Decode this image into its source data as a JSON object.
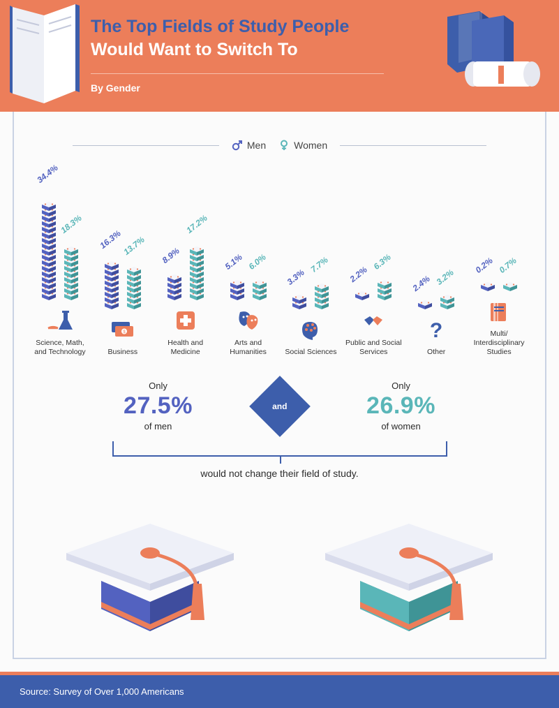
{
  "colors": {
    "header_bg": "#ec7e5a",
    "primary_blue": "#3d5eab",
    "men": "#5362c0",
    "men_dark": "#3f4d9e",
    "women": "#5ab6b8",
    "women_dark": "#3f9496",
    "white": "#ffffff",
    "orange": "#ec7e5a",
    "frame_border": "#c9d2e4",
    "page_bg": "#fbfbfb",
    "rule": "#b8c0d0",
    "icon_blue": "#3d5eab",
    "icon_orange": "#ec7e5a"
  },
  "header": {
    "title_line1": "The Top Fields of Study People",
    "title_line2": "Would Want to Switch To",
    "byline": "By Gender"
  },
  "legend": {
    "men_label": "Men",
    "women_label": "Women"
  },
  "chart": {
    "unit_pct_per_tile": 2.0,
    "pct_label_fontsize": 12,
    "cat_label_fontsize": 10.5,
    "categories": [
      {
        "key": "stem",
        "label": "Science, Math, and Technology",
        "men": 34.4,
        "women": 18.3,
        "icon": "stem"
      },
      {
        "key": "business",
        "label": "Business",
        "men": 16.3,
        "women": 13.7,
        "icon": "business"
      },
      {
        "key": "health",
        "label": "Health and Medicine",
        "men": 8.9,
        "women": 17.2,
        "icon": "health"
      },
      {
        "key": "arts",
        "label": "Arts and Humanities",
        "men": 5.1,
        "women": 6.0,
        "icon": "arts"
      },
      {
        "key": "social",
        "label": "Social Sciences",
        "men": 3.3,
        "women": 7.7,
        "icon": "social"
      },
      {
        "key": "public",
        "label": "Public and Social Services",
        "men": 2.2,
        "women": 6.3,
        "icon": "public"
      },
      {
        "key": "other",
        "label": "Other",
        "men": 2.4,
        "women": 3.2,
        "icon": "other"
      },
      {
        "key": "multi",
        "label": "Multi/ Interdisciplinary Studies",
        "men": 0.2,
        "women": 0.7,
        "icon": "multi"
      }
    ]
  },
  "summary": {
    "only_label": "Only",
    "men_pct": "27.5%",
    "men_suffix": "of men",
    "and_label": "and",
    "women_pct": "26.9%",
    "women_suffix": "of women",
    "sentence": "would not change their field of study."
  },
  "footer": {
    "source": "Source: Survey of Over 1,000 Americans"
  }
}
